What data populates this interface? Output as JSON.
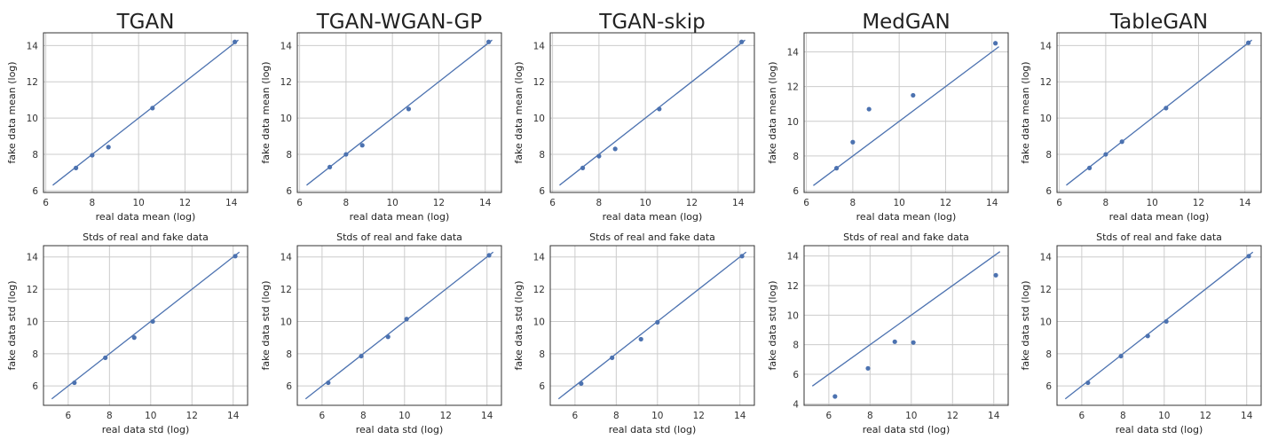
{
  "chart_data": [
    {
      "type": "scatter",
      "title": "TGAN",
      "xlabel": "real data mean (log)",
      "ylabel": "fake data mean (log)",
      "xlim": [
        5.9,
        14.7
      ],
      "ylim": [
        5.9,
        14.7
      ],
      "xticks": [
        6,
        8,
        10,
        12,
        14
      ],
      "yticks": [
        6,
        8,
        10,
        12,
        14
      ],
      "xticklabels": [
        "6",
        "8",
        "10",
        "12",
        "14"
      ],
      "yticklabels": [
        "6",
        "8",
        "10",
        "12",
        "14"
      ],
      "identity_line": [
        6.3,
        14.3
      ],
      "grid": true,
      "points": [
        {
          "x": 7.3,
          "y": 7.25
        },
        {
          "x": 8.0,
          "y": 7.95
        },
        {
          "x": 8.7,
          "y": 8.4
        },
        {
          "x": 10.6,
          "y": 10.55
        },
        {
          "x": 14.15,
          "y": 14.2
        }
      ]
    },
    {
      "type": "scatter",
      "title": "TGAN-WGAN-GP",
      "xlabel": "real data mean (log)",
      "ylabel": "fake data mean (log)",
      "xlim": [
        5.9,
        14.7
      ],
      "ylim": [
        5.9,
        14.7
      ],
      "xticks": [
        6,
        8,
        10,
        12,
        14
      ],
      "yticks": [
        6,
        8,
        10,
        12,
        14
      ],
      "xticklabels": [
        "6",
        "8",
        "10",
        "12",
        "14"
      ],
      "yticklabels": [
        "6",
        "8",
        "10",
        "12",
        "14"
      ],
      "identity_line": [
        6.3,
        14.3
      ],
      "grid": true,
      "points": [
        {
          "x": 7.3,
          "y": 7.3
        },
        {
          "x": 8.0,
          "y": 8.0
        },
        {
          "x": 8.7,
          "y": 8.5
        },
        {
          "x": 10.7,
          "y": 10.5
        },
        {
          "x": 14.15,
          "y": 14.2
        }
      ]
    },
    {
      "type": "scatter",
      "title": "TGAN-skip",
      "xlabel": "real data mean (log)",
      "ylabel": "fake data mean (log)",
      "xlim": [
        5.9,
        14.7
      ],
      "ylim": [
        5.9,
        14.7
      ],
      "xticks": [
        6,
        8,
        10,
        12,
        14
      ],
      "yticks": [
        6,
        8,
        10,
        12,
        14
      ],
      "xticklabels": [
        "6",
        "8",
        "10",
        "12",
        "14"
      ],
      "yticklabels": [
        "6",
        "8",
        "10",
        "12",
        "14"
      ],
      "identity_line": [
        6.3,
        14.3
      ],
      "grid": true,
      "points": [
        {
          "x": 7.3,
          "y": 7.25
        },
        {
          "x": 8.0,
          "y": 7.9
        },
        {
          "x": 8.7,
          "y": 8.3
        },
        {
          "x": 10.6,
          "y": 10.5
        },
        {
          "x": 14.15,
          "y": 14.2
        }
      ]
    },
    {
      "type": "scatter",
      "title": "MedGAN",
      "xlabel": "real data mean (log)",
      "ylabel": "fake data mean (log)",
      "xlim": [
        5.9,
        14.7
      ],
      "ylim": [
        5.9,
        15.1
      ],
      "xticks": [
        6,
        8,
        10,
        12,
        14
      ],
      "yticks": [
        6,
        8,
        10,
        12,
        14
      ],
      "xticklabels": [
        "6",
        "8",
        "10",
        "12",
        "14"
      ],
      "yticklabels": [
        "6",
        "8",
        "10",
        "12",
        "14"
      ],
      "identity_line": [
        6.3,
        14.3
      ],
      "grid": true,
      "points": [
        {
          "x": 7.3,
          "y": 7.3
        },
        {
          "x": 8.0,
          "y": 8.8
        },
        {
          "x": 8.7,
          "y": 10.7
        },
        {
          "x": 10.6,
          "y": 11.5
        },
        {
          "x": 14.15,
          "y": 14.5
        }
      ]
    },
    {
      "type": "scatter",
      "title": "TableGAN",
      "xlabel": "real data mean (log)",
      "ylabel": "fake data mean (log)",
      "xlim": [
        5.9,
        14.7
      ],
      "ylim": [
        5.9,
        14.7
      ],
      "xticks": [
        6,
        8,
        10,
        12,
        14
      ],
      "yticks": [
        6,
        8,
        10,
        12,
        14
      ],
      "xticklabels": [
        "6",
        "8",
        "10",
        "12",
        "14"
      ],
      "yticklabels": [
        "6",
        "8",
        "10",
        "12",
        "14"
      ],
      "identity_line": [
        6.3,
        14.3
      ],
      "grid": true,
      "points": [
        {
          "x": 7.3,
          "y": 7.25
        },
        {
          "x": 8.0,
          "y": 8.0
        },
        {
          "x": 8.7,
          "y": 8.7
        },
        {
          "x": 10.6,
          "y": 10.55
        },
        {
          "x": 14.15,
          "y": 14.15
        }
      ]
    },
    {
      "type": "scatter",
      "title": "Stds of real and fake data",
      "xlabel": "real data std (log)",
      "ylabel": "fake data std (log)",
      "xlim": [
        4.8,
        14.7
      ],
      "ylim": [
        4.8,
        14.7
      ],
      "xticks": [
        6,
        8,
        10,
        12,
        14
      ],
      "yticks": [
        6,
        8,
        10,
        12,
        14
      ],
      "xticklabels": [
        "6",
        "8",
        "10",
        "12",
        "14"
      ],
      "yticklabels": [
        "6",
        "8",
        "10",
        "12",
        "14"
      ],
      "identity_line": [
        5.2,
        14.3
      ],
      "grid": true,
      "points": [
        {
          "x": 6.3,
          "y": 6.2
        },
        {
          "x": 7.8,
          "y": 7.75
        },
        {
          "x": 9.2,
          "y": 9.0
        },
        {
          "x": 10.1,
          "y": 10.0
        },
        {
          "x": 14.1,
          "y": 14.05
        }
      ]
    },
    {
      "type": "scatter",
      "title": "Stds of real and fake data",
      "xlabel": "real data std (log)",
      "ylabel": "fake data std (log)",
      "xlim": [
        4.8,
        14.7
      ],
      "ylim": [
        4.8,
        14.7
      ],
      "xticks": [
        6,
        8,
        10,
        12,
        14
      ],
      "yticks": [
        6,
        8,
        10,
        12,
        14
      ],
      "xticklabels": [
        "6",
        "8",
        "10",
        "12",
        "14"
      ],
      "yticklabels": [
        "6",
        "8",
        "10",
        "12",
        "14"
      ],
      "identity_line": [
        5.2,
        14.3
      ],
      "grid": true,
      "points": [
        {
          "x": 6.3,
          "y": 6.2
        },
        {
          "x": 7.9,
          "y": 7.85
        },
        {
          "x": 9.2,
          "y": 9.05
        },
        {
          "x": 10.1,
          "y": 10.15
        },
        {
          "x": 14.1,
          "y": 14.1
        }
      ]
    },
    {
      "type": "scatter",
      "title": "Stds of real and fake data",
      "xlabel": "real data std (log)",
      "ylabel": "fake data std (log)",
      "xlim": [
        4.8,
        14.7
      ],
      "ylim": [
        4.8,
        14.7
      ],
      "xticks": [
        6,
        8,
        10,
        12,
        14
      ],
      "yticks": [
        6,
        8,
        10,
        12,
        14
      ],
      "xticklabels": [
        "6",
        "8",
        "10",
        "12",
        "14"
      ],
      "yticklabels": [
        "6",
        "8",
        "10",
        "12",
        "14"
      ],
      "identity_line": [
        5.2,
        14.3
      ],
      "grid": true,
      "points": [
        {
          "x": 6.3,
          "y": 6.15
        },
        {
          "x": 7.8,
          "y": 7.75
        },
        {
          "x": 9.2,
          "y": 8.9
        },
        {
          "x": 10.0,
          "y": 9.95
        },
        {
          "x": 14.1,
          "y": 14.05
        }
      ]
    },
    {
      "type": "scatter",
      "title": "Stds of real and fake data",
      "xlabel": "real data std (log)",
      "ylabel": "fake data std (log)",
      "xlim": [
        4.8,
        14.7
      ],
      "ylim": [
        3.9,
        14.7
      ],
      "xticks": [
        6,
        8,
        10,
        12,
        14
      ],
      "yticks": [
        4,
        6,
        8,
        10,
        12,
        14
      ],
      "xticklabels": [
        "6",
        "8",
        "10",
        "12",
        "14"
      ],
      "yticklabels": [
        "4",
        "6",
        "8",
        "10",
        "12",
        "14"
      ],
      "identity_line": [
        5.2,
        14.3
      ],
      "grid": true,
      "points": [
        {
          "x": 6.3,
          "y": 4.5
        },
        {
          "x": 7.9,
          "y": 6.4
        },
        {
          "x": 9.2,
          "y": 8.2
        },
        {
          "x": 10.1,
          "y": 8.15
        },
        {
          "x": 14.1,
          "y": 12.7
        }
      ]
    },
    {
      "type": "scatter",
      "title": "Stds of real and fake data",
      "xlabel": "real data std (log)",
      "ylabel": "fake data std (log)",
      "xlim": [
        4.8,
        14.7
      ],
      "ylim": [
        4.8,
        14.7
      ],
      "xticks": [
        6,
        8,
        10,
        12,
        14
      ],
      "yticks": [
        6,
        8,
        10,
        12,
        14
      ],
      "xticklabels": [
        "6",
        "8",
        "10",
        "12",
        "14"
      ],
      "yticklabels": [
        "6",
        "8",
        "10",
        "12",
        "14"
      ],
      "identity_line": [
        5.2,
        14.3
      ],
      "grid": true,
      "points": [
        {
          "x": 6.3,
          "y": 6.2
        },
        {
          "x": 7.9,
          "y": 7.85
        },
        {
          "x": 9.2,
          "y": 9.1
        },
        {
          "x": 10.1,
          "y": 10.0
        },
        {
          "x": 14.1,
          "y": 14.05
        }
      ]
    }
  ],
  "colors": {
    "series": "#4c72b0",
    "grid": "#cccccc",
    "axes": "#333333"
  }
}
